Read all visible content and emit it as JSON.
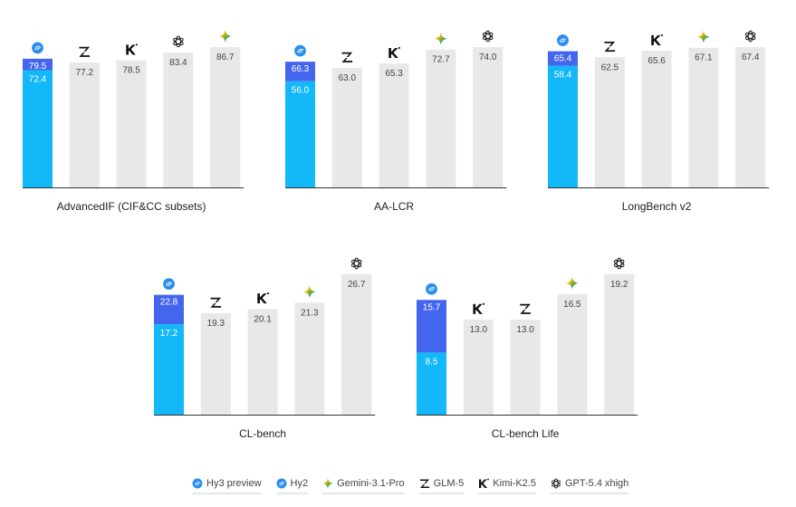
{
  "colors": {
    "hy3": "#4466ee",
    "hy2": "#12b8f8",
    "other": "#e8e8e8",
    "axis": "#333333"
  },
  "legend": [
    {
      "key": "hy3",
      "label": "Hy3 preview",
      "icon": "hy-icon",
      "underline": "#4466ee"
    },
    {
      "key": "hy2",
      "label": "Hy2",
      "icon": "hy-icon",
      "underline": "#12b8f8"
    },
    {
      "key": "gemini",
      "label": "Gemini-3.1-Pro",
      "icon": "gemini-icon",
      "underline": "#e6e6e6"
    },
    {
      "key": "glm",
      "label": "GLM-5",
      "icon": "glm-icon",
      "underline": "#e6e6e6"
    },
    {
      "key": "kimi",
      "label": "Kimi-K2.5",
      "icon": "kimi-icon",
      "underline": "#e6e6e6"
    },
    {
      "key": "gpt",
      "label": "GPT-5.4 xhigh",
      "icon": "gpt-icon",
      "underline": "#e6e6e6"
    }
  ],
  "chart_data": [
    {
      "type": "bar",
      "title": "AdvancedIF (CIF&CC subsets)",
      "hy3": 79.5,
      "hy2": 72.4,
      "bars": [
        {
          "model": "glm",
          "value": 77.2
        },
        {
          "model": "kimi",
          "value": 78.5
        },
        {
          "model": "gpt",
          "value": 83.4
        },
        {
          "model": "gemini",
          "value": 86.7
        }
      ]
    },
    {
      "type": "bar",
      "title": "AA-LCR",
      "hy3": 66.3,
      "hy2": 56.0,
      "bars": [
        {
          "model": "glm",
          "value": 63.0
        },
        {
          "model": "kimi",
          "value": 65.3
        },
        {
          "model": "gemini",
          "value": 72.7
        },
        {
          "model": "gpt",
          "value": 74.0
        }
      ]
    },
    {
      "type": "bar",
      "title": "LongBench v2",
      "hy3": 65.4,
      "hy2": 58.4,
      "bars": [
        {
          "model": "glm",
          "value": 62.5
        },
        {
          "model": "kimi",
          "value": 65.6
        },
        {
          "model": "gemini",
          "value": 67.1
        },
        {
          "model": "gpt",
          "value": 67.4
        }
      ]
    },
    {
      "type": "bar",
      "title": "CL-bench",
      "hy3": 22.8,
      "hy2": 17.2,
      "bars": [
        {
          "model": "glm",
          "value": 19.3
        },
        {
          "model": "kimi",
          "value": 20.1
        },
        {
          "model": "gemini",
          "value": 21.3
        },
        {
          "model": "gpt",
          "value": 26.7
        }
      ]
    },
    {
      "type": "bar",
      "title": "CL-bench Life",
      "hy3": 15.7,
      "hy2": 8.5,
      "bars": [
        {
          "model": "kimi",
          "value": 13.0
        },
        {
          "model": "glm",
          "value": 13.0
        },
        {
          "model": "gemini",
          "value": 16.5
        },
        {
          "model": "gpt",
          "value": 19.2
        }
      ]
    }
  ]
}
